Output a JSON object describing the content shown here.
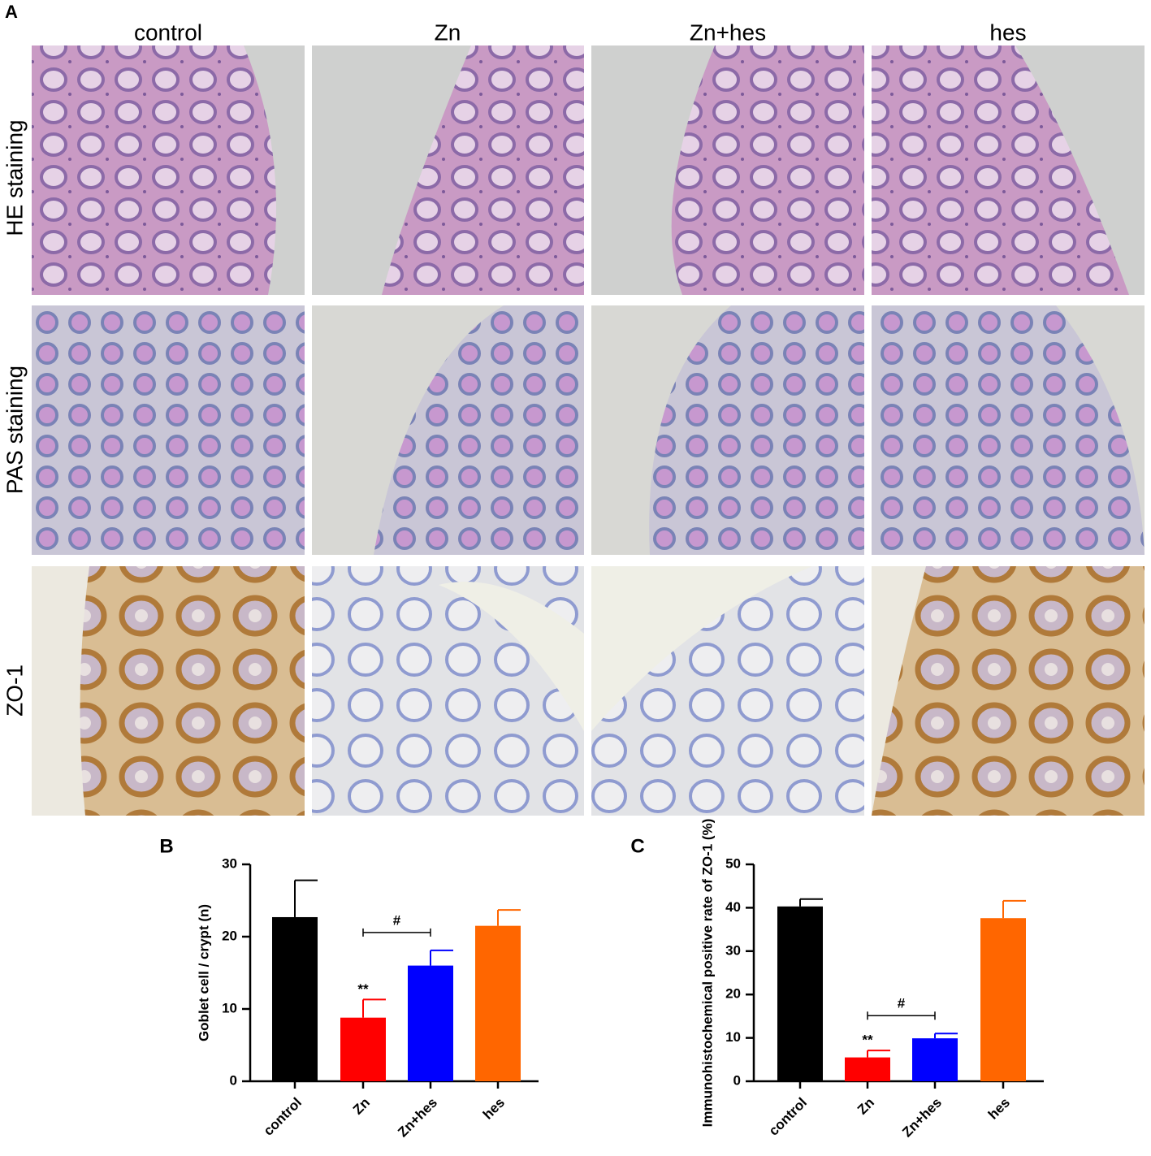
{
  "panels": {
    "a": {
      "letter": "A",
      "columns": [
        "control",
        "Zn",
        "Zn+hes",
        "hes"
      ],
      "rows": [
        "HE staining",
        "PAS staining",
        "ZO-1"
      ]
    }
  },
  "chart_data": [
    {
      "type": "bar",
      "letter": "B",
      "y_label": "Goblet cell / crypt (n)",
      "categories": [
        "control",
        "Zn",
        "Zn+hes",
        "hes"
      ],
      "values": [
        22.7,
        8.8,
        16.0,
        21.5
      ],
      "errors": [
        5.1,
        2.5,
        2.1,
        2.2
      ],
      "colors": [
        "#000000",
        "#ff0000",
        "#0000ff",
        "#ff6600"
      ],
      "significance": [
        null,
        "**",
        null,
        null
      ],
      "comparisons": [
        {
          "label": "#",
          "between": [
            "Zn",
            "Zn+hes"
          ]
        }
      ],
      "ylim": [
        0,
        30
      ],
      "yticks": [
        0,
        10,
        20,
        30
      ]
    },
    {
      "type": "bar",
      "letter": "C",
      "y_label": "Immunohistochemical positive rate of ZO-1 (%)",
      "categories": [
        "control",
        "Zn",
        "Zn+hes",
        "hes"
      ],
      "values": [
        40.3,
        5.5,
        9.9,
        37.6
      ],
      "errors": [
        1.7,
        1.6,
        1.1,
        4.0
      ],
      "colors": [
        "#000000",
        "#ff0000",
        "#0000ff",
        "#ff6600"
      ],
      "significance": [
        null,
        "**",
        null,
        null
      ],
      "comparisons": [
        {
          "label": "#",
          "between": [
            "Zn",
            "Zn+hes"
          ]
        }
      ],
      "ylim": [
        0,
        50
      ],
      "yticks": [
        0,
        10,
        20,
        30,
        40,
        50
      ]
    }
  ]
}
